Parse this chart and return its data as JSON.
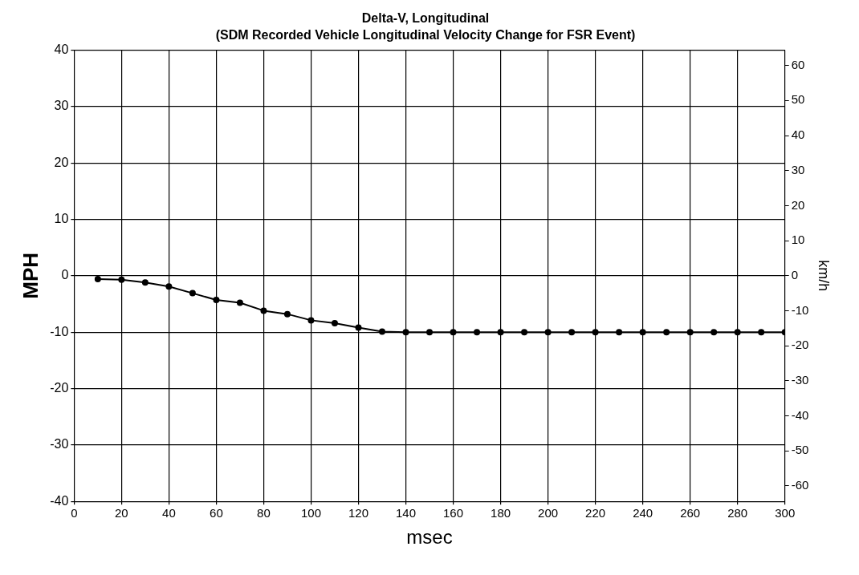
{
  "chart_data": {
    "type": "line",
    "title": "Delta-V, Longitudinal",
    "subtitle": "(SDM Recorded Vehicle Longitudinal Velocity Change for FSR Event)",
    "xlabel": "msec",
    "ylabel": "MPH",
    "y2label": "km/h",
    "x": [
      10,
      20,
      30,
      40,
      50,
      60,
      70,
      80,
      90,
      100,
      110,
      120,
      130,
      140,
      150,
      160,
      170,
      180,
      190,
      200,
      210,
      220,
      230,
      240,
      250,
      260,
      270,
      280,
      290,
      300
    ],
    "series": [
      {
        "color": "#000000",
        "values": [
          -0.6,
          -0.7,
          -1.2,
          -1.9,
          -3.1,
          -4.3,
          -4.8,
          -6.2,
          -6.8,
          -7.9,
          -8.4,
          -9.2,
          -9.9,
          -10,
          -10,
          -10,
          -10,
          -10,
          -10,
          -10,
          -10,
          -10,
          -10,
          -10,
          -10,
          -10,
          -10,
          -10,
          -10,
          -10
        ]
      }
    ],
    "xlim": [
      0,
      300
    ],
    "xticks": [
      0,
      20,
      40,
      60,
      80,
      100,
      120,
      140,
      160,
      180,
      200,
      220,
      240,
      260,
      280,
      300
    ],
    "ylim": [
      -40,
      40
    ],
    "yticks": [
      -40,
      -30,
      -20,
      -10,
      0,
      10,
      20,
      30,
      40
    ],
    "y2lim": [
      -64.4,
      64.4
    ],
    "y2ticks": [
      -60,
      -50,
      -40,
      -30,
      -20,
      -10,
      0,
      10,
      20,
      30,
      40,
      50,
      60
    ],
    "grid": true,
    "legend": false,
    "marker": "circle",
    "line_style": "solid"
  }
}
